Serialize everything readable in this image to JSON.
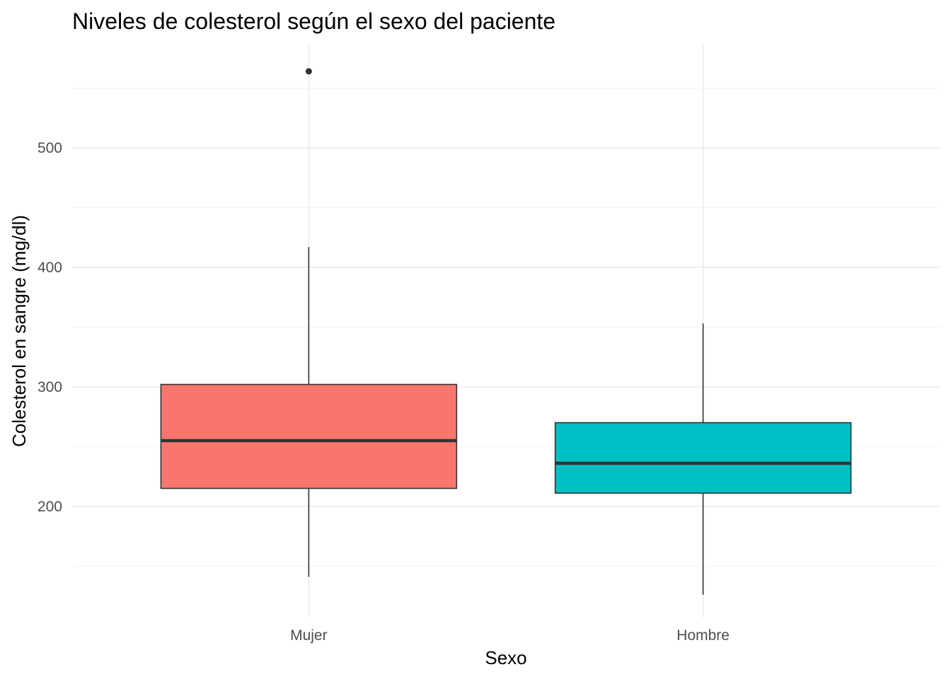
{
  "chart_data": {
    "type": "boxplot",
    "title": "Niveles de colesterol según el sexo del paciente",
    "xlabel": "Sexo",
    "ylabel": "Colesterol en sangre (mg/dl)",
    "categories": [
      "Mujer",
      "Hombre"
    ],
    "ylim": [
      107,
      587
    ],
    "yticks": [
      200,
      300,
      400,
      500
    ],
    "ytick_labels": [
      "200",
      "300",
      "400",
      "500"
    ],
    "grid": true,
    "legend": "none",
    "boxes": [
      {
        "category": "Mujer",
        "min": 141,
        "q1": 215,
        "median": 255,
        "q3": 302,
        "max": 417,
        "outliers": [
          564
        ],
        "color": "#F8766D"
      },
      {
        "category": "Hombre",
        "min": 126,
        "q1": 211,
        "median": 236,
        "q3": 270,
        "max": 353,
        "outliers": [],
        "color": "#00BFC4"
      }
    ]
  }
}
